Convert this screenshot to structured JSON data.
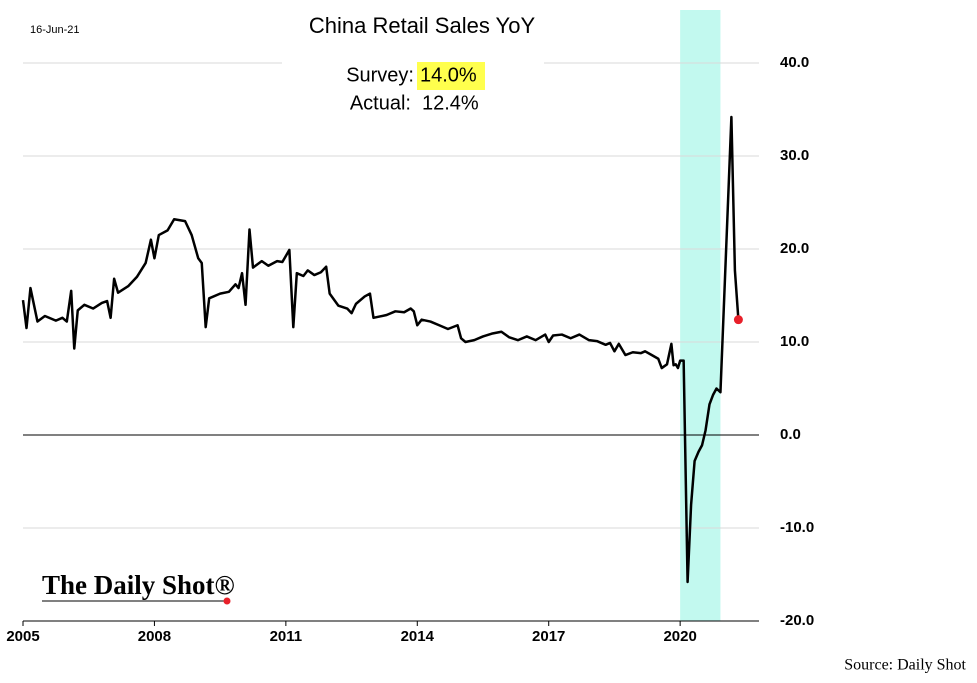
{
  "chart_data": {
    "type": "line",
    "title": "China Retail Sales YoY",
    "date_label": "16-Jun-21",
    "survey_label": "Survey:",
    "survey_value": "14.0%",
    "actual_label": "Actual:",
    "actual_value": "12.4%",
    "logo": "The Daily Shot®",
    "source": "Source: Daily Shot",
    "xlim": [
      2005,
      2021.8
    ],
    "xticks": [
      2005,
      2008,
      2011,
      2014,
      2017,
      2020
    ],
    "ylim": [
      -20,
      45.7
    ],
    "yticks": [
      {
        "value": -20,
        "label": "-20.0"
      },
      {
        "value": -10,
        "label": "-10.0"
      },
      {
        "value": 0,
        "label": "0.0"
      },
      {
        "value": 10,
        "label": "10.0"
      },
      {
        "value": 20,
        "label": "20.0"
      },
      {
        "value": 30,
        "label": "30.0"
      },
      {
        "value": 40,
        "label": "40.0"
      }
    ],
    "grid": true,
    "shaded_range": [
      2020,
      2020.92
    ],
    "shaded_color": "#c2f9ef",
    "highlight_color": "#ffff4d",
    "last_point_color": "#e8202a",
    "series": [
      {
        "name": "China Retail Sales YoY",
        "color": "#000000",
        "x": [
          2005.0,
          2005.08,
          2005.17,
          2005.33,
          2005.5,
          2005.75,
          2005.9,
          2006.0,
          2006.1,
          2006.17,
          2006.25,
          2006.4,
          2006.6,
          2006.8,
          2006.92,
          2007.0,
          2007.08,
          2007.17,
          2007.4,
          2007.6,
          2007.8,
          2007.92,
          2008.0,
          2008.1,
          2008.3,
          2008.45,
          2008.7,
          2008.85,
          2009.0,
          2009.08,
          2009.17,
          2009.25,
          2009.5,
          2009.7,
          2009.85,
          2009.92,
          2010.0,
          2010.08,
          2010.17,
          2010.25,
          2010.45,
          2010.6,
          2010.8,
          2010.92,
          2011.08,
          2011.17,
          2011.25,
          2011.4,
          2011.5,
          2011.65,
          2011.8,
          2011.92,
          2012.0,
          2012.2,
          2012.4,
          2012.5,
          2012.6,
          2012.8,
          2012.92,
          2013.0,
          2013.3,
          2013.5,
          2013.7,
          2013.85,
          2013.92,
          2014.0,
          2014.1,
          2014.3,
          2014.5,
          2014.7,
          2014.92,
          2015.0,
          2015.1,
          2015.3,
          2015.5,
          2015.7,
          2015.92,
          2016.1,
          2016.3,
          2016.5,
          2016.7,
          2016.92,
          2017.0,
          2017.1,
          2017.3,
          2017.5,
          2017.7,
          2017.92,
          2018.1,
          2018.3,
          2018.4,
          2018.5,
          2018.6,
          2018.75,
          2018.92,
          2019.1,
          2019.2,
          2019.35,
          2019.5,
          2019.58,
          2019.7,
          2019.8,
          2019.85,
          2019.9,
          2019.95,
          2020.0,
          2020.08,
          2020.17,
          2020.25,
          2020.33,
          2020.42,
          2020.5,
          2020.58,
          2020.67,
          2020.75,
          2020.83,
          2020.92,
          2021.17,
          2021.25,
          2021.33
        ],
        "values": [
          14.5,
          11.5,
          15.8,
          12.2,
          12.8,
          12.3,
          12.6,
          12.2,
          15.5,
          9.3,
          13.4,
          14.0,
          13.6,
          14.2,
          14.4,
          12.6,
          16.8,
          15.3,
          16.0,
          17.0,
          18.5,
          21.0,
          19.0,
          21.5,
          22.0,
          23.2,
          23.0,
          21.5,
          19.0,
          18.5,
          11.6,
          14.7,
          15.2,
          15.4,
          16.2,
          15.8,
          17.4,
          14.0,
          22.1,
          18.0,
          18.7,
          18.2,
          18.7,
          18.6,
          19.9,
          11.6,
          17.4,
          17.1,
          17.7,
          17.2,
          17.5,
          18.1,
          15.2,
          13.9,
          13.6,
          13.1,
          14.1,
          14.9,
          15.2,
          12.6,
          12.9,
          13.3,
          13.2,
          13.6,
          13.3,
          11.8,
          12.4,
          12.2,
          11.8,
          11.4,
          11.8,
          10.4,
          10.0,
          10.2,
          10.6,
          10.9,
          11.1,
          10.5,
          10.2,
          10.6,
          10.2,
          10.8,
          10.0,
          10.7,
          10.8,
          10.4,
          10.8,
          10.2,
          10.1,
          9.7,
          9.9,
          9.0,
          9.8,
          8.6,
          8.9,
          8.8,
          9.0,
          8.6,
          8.2,
          7.2,
          7.6,
          9.8,
          7.5,
          7.6,
          7.2,
          8.0,
          8.0,
          -15.8,
          -7.5,
          -2.8,
          -1.8,
          -1.1,
          0.5,
          3.3,
          4.3,
          5.0,
          4.6,
          34.2,
          17.7,
          12.4
        ]
      }
    ]
  }
}
